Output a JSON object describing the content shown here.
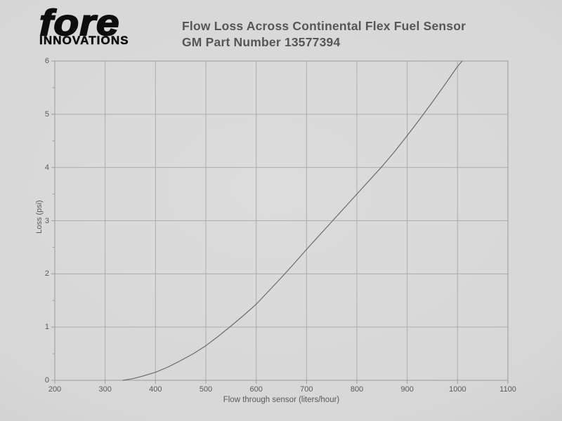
{
  "logo": {
    "primary": "fore",
    "secondary": "INNOVATIONS"
  },
  "title": {
    "line1": "Flow Loss Across Continental Flex Fuel Sensor",
    "line2": "GM Part Number 13577394"
  },
  "chart_data": {
    "type": "line",
    "title": "Flow Loss Across Continental Flex Fuel Sensor GM Part Number 13577394",
    "xlabel": "Flow through sensor (liters/hour)",
    "ylabel": "Loss (psi)",
    "xlim": [
      200,
      1100
    ],
    "ylim": [
      0,
      6
    ],
    "x_ticks": [
      200,
      300,
      400,
      500,
      600,
      700,
      800,
      900,
      1000,
      1100
    ],
    "y_ticks": [
      0,
      1,
      2,
      3,
      4,
      5,
      6
    ],
    "y_minor_step": 0.5,
    "grid": true,
    "legend": false,
    "series": [
      {
        "name": "Flow loss",
        "points": [
          [
            335,
            0
          ],
          [
            355,
            0.03
          ],
          [
            375,
            0.08
          ],
          [
            400,
            0.15
          ],
          [
            425,
            0.25
          ],
          [
            450,
            0.37
          ],
          [
            475,
            0.5
          ],
          [
            500,
            0.65
          ],
          [
            525,
            0.83
          ],
          [
            550,
            1.02
          ],
          [
            575,
            1.22
          ],
          [
            600,
            1.43
          ],
          [
            625,
            1.68
          ],
          [
            650,
            1.93
          ],
          [
            675,
            2.19
          ],
          [
            700,
            2.46
          ],
          [
            725,
            2.72
          ],
          [
            750,
            2.98
          ],
          [
            775,
            3.24
          ],
          [
            800,
            3.5
          ],
          [
            825,
            3.76
          ],
          [
            850,
            4.02
          ],
          [
            875,
            4.3
          ],
          [
            900,
            4.6
          ],
          [
            925,
            4.91
          ],
          [
            950,
            5.23
          ],
          [
            975,
            5.56
          ],
          [
            1000,
            5.9
          ],
          [
            1009,
            6.0
          ]
        ]
      }
    ],
    "colors": {
      "line": "#6b6b6b",
      "grid": "#adadad",
      "border": "#9c9c9c",
      "axis_text": "#595959",
      "title_text": "#565656",
      "background": "#d7d7d7",
      "logo": "#0d0d0d"
    }
  }
}
